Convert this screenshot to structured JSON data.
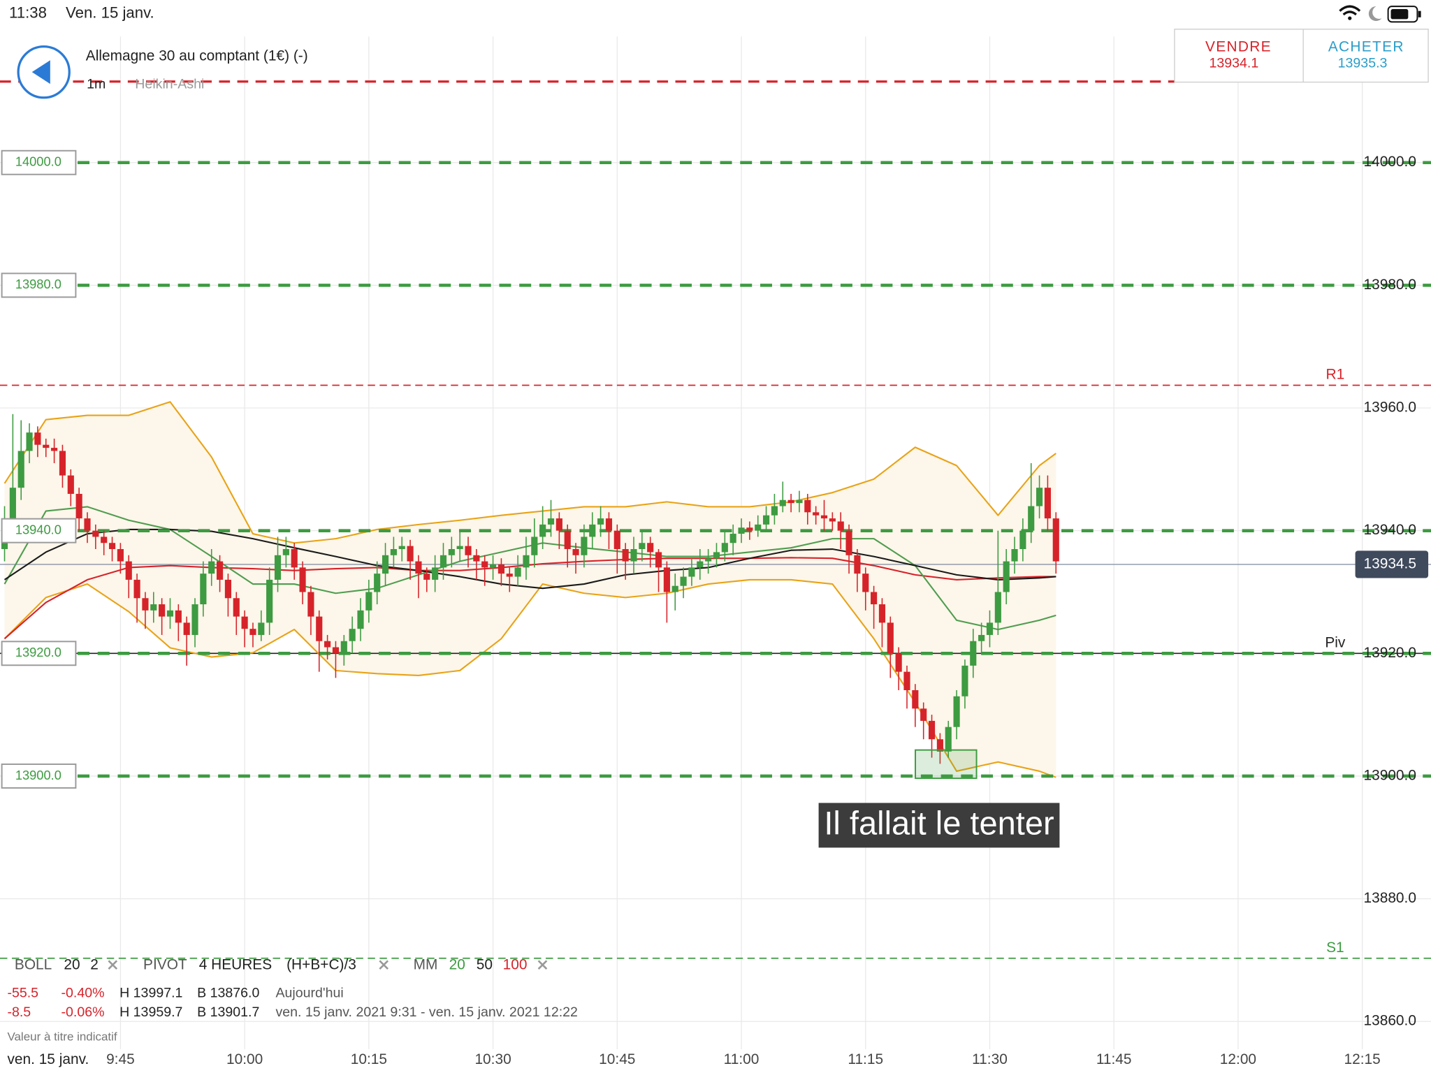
{
  "status_bar": {
    "time": "11:38",
    "date": "Ven. 15 janv."
  },
  "header": {
    "instrument": "Allemagne 30 au comptant (1€) (-)",
    "timeframe": "1m",
    "chart_style": "Heikin-Ashi"
  },
  "trade_buttons": [
    {
      "label": "VENDRE",
      "price": "13934.1"
    },
    {
      "label": "ACHETER",
      "price": "13935.3"
    }
  ],
  "indicators": {
    "boll": {
      "name": "BOLL",
      "params": [
        "20",
        "2"
      ]
    },
    "pivot": {
      "name": "PIVOT",
      "params": [
        "4 HEURES",
        "(H+B+C)/3"
      ]
    },
    "mm": {
      "name": "MM",
      "params": [
        "20",
        "50",
        "100"
      ]
    }
  },
  "stats": {
    "rows": [
      [
        "-55.5",
        "-0.40%",
        "H 13997.1",
        "B 13876.0",
        "Aujourd'hui"
      ],
      [
        "-8.5",
        "-0.06%",
        "H 13959.7",
        "B 13901.7",
        "ven. 15 janv. 2021 9:31 - ven. 15 janv. 2021 12:22"
      ]
    ]
  },
  "footnote": "Valeur à titre indicatif",
  "chart_data": {
    "type": "candlestick",
    "up_color": "#3d9b41",
    "down_color": "#d6232a",
    "x": [
      571,
      572,
      573,
      574,
      575,
      576,
      577,
      578,
      579,
      580,
      581,
      582,
      583,
      584,
      585,
      586,
      587,
      588,
      589,
      590,
      591,
      592,
      593,
      594,
      595,
      596,
      597,
      598,
      599,
      600,
      601,
      602,
      603,
      604,
      605,
      606,
      607,
      608,
      609,
      610,
      611,
      612,
      613,
      614,
      615,
      616,
      617,
      618,
      619,
      620,
      621,
      622,
      623,
      624,
      625,
      626,
      627,
      628,
      629,
      630,
      631,
      632,
      633,
      634,
      635,
      636,
      637,
      638,
      639,
      640,
      641,
      642,
      643,
      644,
      645,
      646,
      647,
      648,
      649,
      650,
      651,
      652,
      653,
      654,
      655,
      656,
      657,
      658,
      659,
      660,
      661,
      662,
      663,
      664,
      665,
      666,
      667,
      668,
      669,
      670,
      671,
      672,
      673,
      674,
      675,
      676,
      677,
      678,
      679,
      680,
      681,
      682,
      683,
      684,
      685,
      686,
      687,
      688,
      689,
      690,
      691,
      692,
      693,
      694,
      695,
      696,
      697,
      698
    ],
    "open": [
      13937,
      13942,
      13947,
      13953,
      13956,
      13954,
      13953.5,
      13953,
      13949,
      13946,
      13942,
      13940,
      13939,
      13938,
      13937,
      13935,
      13932,
      13929,
      13927,
      13928,
      13926,
      13927,
      13925,
      13923,
      13928,
      13933,
      13935,
      13932,
      13929,
      13926,
      13924,
      13923,
      13925,
      13932,
      13936,
      13937,
      13934,
      13930,
      13926,
      13922,
      13921,
      13920,
      13922,
      13924,
      13927,
      13930,
      13933,
      13936,
      13937,
      13937.5,
      13935,
      13933,
      13932,
      13934,
      13936,
      13937,
      13937.5,
      13936,
      13935,
      13934,
      13934.5,
      13933,
      13932.5,
      13934,
      13936,
      13939,
      13941,
      13942,
      13940,
      13937,
      13936,
      13939,
      13941,
      13942,
      13940,
      13937,
      13935,
      13937,
      13938,
      13936.5,
      13934,
      13930,
      13931,
      13932.5,
      13934,
      13935,
      13935.5,
      13936.5,
      13938,
      13939.5,
      13940.5,
      13940,
      13941,
      13942.5,
      13944,
      13945,
      13944.5,
      13945,
      13943,
      13942.5,
      13942,
      13941.5,
      13940,
      13936,
      13933,
      13930,
      13928,
      13925,
      13920,
      13917,
      13914,
      13911,
      13909,
      13906,
      13904,
      13908,
      13913,
      13918,
      13922,
      13923,
      13925,
      13930,
      13935,
      13937,
      13940,
      13944,
      13947,
      13942
    ],
    "high": [
      13944,
      13959,
      13958,
      13957.5,
      13957,
      13955,
      13955,
      13954,
      13950,
      13947,
      13943,
      13941,
      13940,
      13939,
      13938,
      13936,
      13933,
      13930,
      13930,
      13929,
      13929,
      13928,
      13926,
      13929,
      13935,
      13937,
      13936,
      13933,
      13930,
      13927,
      13925,
      13927,
      13934,
      13939,
      13939,
      13938,
      13935,
      13931,
      13927,
      13923,
      13922,
      13923,
      13926,
      13929,
      13932,
      13935,
      13938,
      13939,
      13939,
      13938.5,
      13936,
      13934,
      13936,
      13938,
      13939,
      13940,
      13939,
      13937,
      13936,
      13936,
      13935.5,
      13934,
      13936,
      13939,
      13942,
      13944,
      13945,
      13943,
      13941,
      13938,
      13941,
      13943,
      13944,
      13943,
      13941,
      13938,
      13939,
      13940,
      13939,
      13937,
      13935,
      13933,
      13934,
      13935.5,
      13937,
      13937,
      13938,
      13940,
      13941,
      13942,
      13941.5,
      13942.5,
      13944,
      13946,
      13948,
      13946,
      13946.5,
      13946,
      13944,
      13945,
      13943,
      13943,
      13941,
      13937,
      13934,
      13931,
      13929,
      13926,
      13921,
      13918,
      13915,
      13912,
      13910,
      13907,
      13909,
      13914,
      13919,
      13924,
      13925,
      13927,
      13940,
      13937,
      13939,
      13942,
      13951,
      13949,
      13949,
      13943
    ],
    "low": [
      13935,
      13940,
      13945,
      13951,
      13952,
      13952,
      13951,
      13947,
      13944,
      13940,
      13938,
      13937,
      13936,
      13935,
      13933,
      13929,
      13925,
      13924,
      13925,
      13923,
      13924,
      13922,
      13918,
      13921,
      13926,
      13931,
      13930,
      13926,
      13923,
      13921,
      13921,
      13922,
      13923,
      13930,
      13934,
      13932,
      13928,
      13923,
      13917,
      13919,
      13916,
      13918,
      13920,
      13922,
      13925,
      13928,
      13931,
      13934,
      13935,
      13932,
      13929,
      13930,
      13930,
      13932,
      13934,
      13935,
      13934,
      13932,
      13931,
      13932,
      13931,
      13930,
      13931,
      13932,
      13934,
      13937,
      13939,
      13937,
      13934,
      13933,
      13934,
      13937,
      13939,
      13937,
      13933,
      13932,
      13933,
      13935,
      13934,
      13930,
      13925,
      13927,
      13929,
      13931,
      13932,
      13933,
      13934,
      13935,
      13936,
      13938,
      13938.5,
      13939,
      13940,
      13941,
      13943,
      13943,
      13943,
      13941,
      13941,
      13940,
      13940,
      13937,
      13933,
      13930,
      13927,
      13924,
      13921,
      13916,
      13914,
      13911,
      13908,
      13906,
      13903,
      13902,
      13903,
      13906,
      13911,
      13916,
      13920,
      13921,
      13923,
      13928,
      13933,
      13935,
      13938,
      13942,
      13940,
      13933
    ],
    "close": [
      13942,
      13947,
      13953,
      13956,
      13954,
      13953.5,
      13953,
      13949,
      13946,
      13942,
      13940,
      13939,
      13938,
      13937,
      13935,
      13932,
      13929,
      13927,
      13928,
      13926,
      13927,
      13925,
      13923,
      13928,
      13933,
      13935,
      13932,
      13929,
      13926,
      13924,
      13923,
      13925,
      13932,
      13936,
      13937,
      13934,
      13930,
      13926,
      13922,
      13921,
      13920,
      13922,
      13924,
      13927,
      13930,
      13933,
      13936,
      13937,
      13937.5,
      13935,
      13933,
      13932,
      13934,
      13936,
      13937,
      13937.5,
      13936,
      13935,
      13934,
      13934.5,
      13933,
      13932.5,
      13934,
      13936,
      13939,
      13941,
      13942,
      13940,
      13937,
      13936,
      13939,
      13941,
      13942,
      13940,
      13937,
      13935,
      13937,
      13938,
      13936.5,
      13934,
      13930,
      13931,
      13932.5,
      13934,
      13935,
      13935.5,
      13936.5,
      13938,
      13939.5,
      13940.5,
      13940,
      13941,
      13942.5,
      13944,
      13945,
      13944.5,
      13945,
      13943,
      13942.5,
      13942,
      13941.5,
      13940,
      13936,
      13933,
      13930,
      13928,
      13925,
      13920,
      13917,
      13914,
      13911,
      13909,
      13906,
      13904,
      13908,
      13913,
      13918,
      13922,
      13923,
      13925,
      13930,
      13935,
      13937,
      13940,
      13944,
      13947,
      13942,
      13935
    ],
    "overlays": {
      "x": [
        571,
        576,
        581,
        586,
        591,
        596,
        601,
        606,
        611,
        616,
        621,
        626,
        631,
        636,
        641,
        646,
        651,
        656,
        661,
        666,
        671,
        676,
        681,
        686,
        691,
        696,
        698
      ],
      "boll_upper": {
        "color": "#e8a317",
        "values": [
          13947.7,
          13958.1,
          13958.8,
          13958.8,
          13961.0,
          13952.0,
          13939.5,
          13938.0,
          13938.7,
          13940.2,
          13941.0,
          13941.7,
          13942.5,
          13943.2,
          13943.9,
          13943.9,
          13944.7,
          13943.9,
          13943.9,
          13944.7,
          13946.2,
          13948.4,
          13953.6,
          13950.6,
          13942.5,
          13950.6,
          13952.6
        ]
      },
      "boll_lower": {
        "color": "#e8a317",
        "values": [
          13922.4,
          13929.1,
          13931.3,
          13926.8,
          13920.9,
          13919.4,
          13920.1,
          13923.9,
          13917.2,
          13916.7,
          13916.4,
          13917.2,
          13922.4,
          13931.3,
          13929.8,
          13929.1,
          13929.8,
          13931.3,
          13932.0,
          13932.0,
          13931.3,
          13922.4,
          13912.0,
          13900.8,
          13902.3,
          13900.8,
          13899.8
        ]
      },
      "band_fill": "#fdf6ea",
      "mm20": {
        "color": "#4f9d4f",
        "values": [
          13931.3,
          13943.2,
          13943.9,
          13941.7,
          13940.2,
          13935.8,
          13931.3,
          13931.3,
          13929.8,
          13930.6,
          13932.8,
          13935.0,
          13936.5,
          13938.0,
          13937.2,
          13936.5,
          13935.8,
          13935.8,
          13936.5,
          13937.2,
          13938.7,
          13938.7,
          13934.3,
          13925.4,
          13923.9,
          13925.4,
          13926.2
        ]
      },
      "mm50": {
        "color": "#1a1a1a",
        "values": [
          13932.0,
          13936.5,
          13939.5,
          13940.2,
          13940.2,
          13939.9,
          13938.7,
          13937.2,
          13935.8,
          13934.3,
          13933.5,
          13932.5,
          13931.3,
          13930.6,
          13931.3,
          13932.8,
          13933.5,
          13934.0,
          13935.5,
          13936.8,
          13937.0,
          13935.8,
          13934.3,
          13932.8,
          13932.0,
          13932.3,
          13932.5
        ]
      },
      "mm100": {
        "color": "#d6232a",
        "values": [
          13922.4,
          13928.3,
          13932.0,
          13934.0,
          13934.3,
          13934.0,
          13933.8,
          13933.5,
          13933.8,
          13934.0,
          13933.5,
          13933.5,
          13934.0,
          13934.6,
          13935.0,
          13935.3,
          13935.5,
          13935.5,
          13935.5,
          13935.6,
          13935.5,
          13934.3,
          13932.8,
          13932.0,
          13932.3,
          13932.5,
          13932.5
        ]
      }
    },
    "xlim": [
      570.45,
      743.3
    ],
    "xticks": [
      {
        "value": 585,
        "label": "9:45"
      },
      {
        "value": 600,
        "label": "10:00"
      },
      {
        "value": 615,
        "label": "10:15"
      },
      {
        "value": 630,
        "label": "10:30"
      },
      {
        "value": 645,
        "label": "10:45"
      },
      {
        "value": 660,
        "label": "11:00"
      },
      {
        "value": 675,
        "label": "11:15"
      },
      {
        "value": 690,
        "label": "11:30"
      },
      {
        "value": 705,
        "label": "11:45"
      },
      {
        "value": 720,
        "label": "12:00"
      },
      {
        "value": 735,
        "label": "12:15"
      }
    ],
    "x_date_label": "ven. 15 janv.",
    "ylim": [
      13851.6,
      14026.5
    ],
    "yticks": [
      {
        "value": 13860,
        "label": "13860.0"
      },
      {
        "value": 13880,
        "label": "13880.0"
      },
      {
        "value": 13900,
        "label": "13900.0"
      },
      {
        "value": 13920,
        "label": "13920.0"
      },
      {
        "value": 13940,
        "label": "13940.0"
      },
      {
        "value": 13960,
        "label": "13960.0"
      },
      {
        "value": 13980,
        "label": "13980.0"
      },
      {
        "value": 14000,
        "label": "14000.0"
      }
    ],
    "grid": true,
    "levels": [
      {
        "value": 14000,
        "label": "14000.0"
      },
      {
        "value": 13980,
        "label": "13980.0"
      },
      {
        "value": 13940,
        "label": "13940.0"
      },
      {
        "value": 13920,
        "label": "13920.0"
      },
      {
        "value": 13900,
        "label": "13900.0"
      }
    ],
    "level_color": "#3d9b41",
    "pivots": [
      {
        "label": "R1",
        "value": 13963.7,
        "color": "#d6232a"
      },
      {
        "label": "Piv",
        "value": 13920,
        "color": "#222222"
      },
      {
        "label": "S1",
        "value": 13870.3,
        "color": "#3d9b41"
      }
    ],
    "alert_line": {
      "value": 14013.2,
      "color": "#d6232a"
    },
    "current_price": {
      "value": 13934.5,
      "label": "13934.5"
    },
    "annotation": "Il fallait le tenter"
  }
}
